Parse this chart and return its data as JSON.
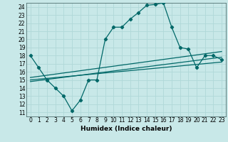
{
  "title": "",
  "xlabel": "Humidex (Indice chaleur)",
  "ylabel": "",
  "bg_color": "#c8e8e8",
  "plot_bg_color": "#c8e8e8",
  "grid_color": "#b0d8d8",
  "line_color": "#006868",
  "xlim": [
    -0.5,
    23.5
  ],
  "ylim": [
    10.5,
    24.5
  ],
  "xticks": [
    0,
    1,
    2,
    3,
    4,
    5,
    6,
    7,
    8,
    9,
    10,
    11,
    12,
    13,
    14,
    15,
    16,
    17,
    18,
    19,
    20,
    21,
    22,
    23
  ],
  "yticks": [
    11,
    12,
    13,
    14,
    15,
    16,
    17,
    18,
    19,
    20,
    21,
    22,
    23,
    24
  ],
  "main_x": [
    0,
    1,
    2,
    3,
    4,
    5,
    6,
    7,
    8,
    9,
    10,
    11,
    12,
    13,
    14,
    15,
    16,
    17,
    18,
    19,
    20,
    21,
    22,
    23
  ],
  "main_y": [
    18,
    16.5,
    15,
    14,
    13,
    11.2,
    12.5,
    15.0,
    15.0,
    20.0,
    21.5,
    21.5,
    22.5,
    23.3,
    24.2,
    24.3,
    24.5,
    21.5,
    19.0,
    18.8,
    16.5,
    18.0,
    18.0,
    17.5
  ],
  "line1_x": [
    0,
    23
  ],
  "line1_y": [
    15.3,
    18.5
  ],
  "line2_x": [
    0,
    23
  ],
  "line2_y": [
    14.8,
    17.8
  ],
  "line3_x": [
    0,
    23
  ],
  "line3_y": [
    15.0,
    17.2
  ],
  "marker": "D",
  "markersize": 2.2,
  "linewidth": 0.9,
  "tick_fontsize": 5.5,
  "xlabel_fontsize": 6.5,
  "xlabel_fontweight": "bold"
}
